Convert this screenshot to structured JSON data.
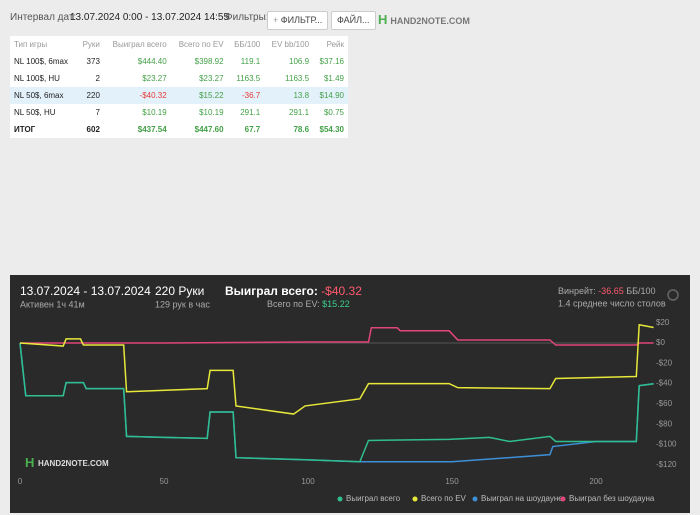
{
  "toolbar": {
    "date_label": "Интервал дат:",
    "date_range": "13.07.2024 0:00 - 13.07.2024 14:55",
    "filters_label": "Фильтры:",
    "filter_button": "ФИЛЬТР...",
    "file_button": "ФАЙЛ...",
    "logo": "HAND2NOTE.COM"
  },
  "table": {
    "columns": [
      "Тип игры",
      "Руки",
      "Выиграл всего",
      "Всего по EV",
      "ББ/100",
      "EV bb/100",
      "Рейк"
    ],
    "rows": [
      [
        "NL 100$, 6max",
        "373",
        "$444.40",
        "$398.92",
        "119.1",
        "106.9",
        "$37.16"
      ],
      [
        "NL 100$, HU",
        "2",
        "$23.27",
        "$23.27",
        "1163.5",
        "1163.5",
        "$1.49"
      ],
      [
        "NL 50$, 6max",
        "220",
        "-$40.32",
        "$15.22",
        "-36.7",
        "13.8",
        "$14.90"
      ],
      [
        "NL 50$, HU",
        "7",
        "$10.19",
        "$10.19",
        "291.1",
        "291.1",
        "$0.75"
      ],
      [
        "ИТОГ",
        "602",
        "$437.54",
        "$447.60",
        "67.7",
        "78.6",
        "$54.30"
      ]
    ]
  },
  "summary": {
    "dates": "13.07.2024 - 13.07.2024",
    "active": "Активен 1ч 41м",
    "hands": "220 Руки",
    "rate": "129 рук в час",
    "won_label": "Выиграл всего:",
    "won": "-$40.32",
    "ev_label": "Всего по EV:",
    "ev": "$15.22",
    "winrate_label": "Винрейт:",
    "winrate": "-36.65",
    "winrate_unit": "ББ/100",
    "tables": "1.4 среднее число столов",
    "logo": "HAND2NOTE.COM"
  },
  "chart_data": {
    "type": "line",
    "xlim": [
      0,
      220
    ],
    "xticks": [
      0,
      50,
      100,
      150,
      200
    ],
    "ylim": [
      -126,
      26
    ],
    "yticks": [
      {
        "value": 20,
        "label": "$20"
      },
      {
        "value": 0,
        "label": "$0"
      },
      {
        "value": -20,
        "label": "-$20"
      },
      {
        "value": -40,
        "label": "-$40"
      },
      {
        "value": -60,
        "label": "-$60"
      },
      {
        "value": -80,
        "label": "-$80"
      },
      {
        "value": -100,
        "label": "-$100"
      },
      {
        "value": -120,
        "label": "-$120"
      }
    ],
    "series": [
      {
        "name": "Выиграл всего",
        "color": "#2fbf8f",
        "x": [
          0,
          2,
          15,
          16,
          22,
          23,
          36,
          37,
          50,
          65,
          66,
          74,
          75,
          99,
          118,
          121,
          149,
          163,
          170,
          184,
          186,
          214,
          215,
          220
        ],
        "values": [
          0,
          -52,
          -52,
          -39,
          -39,
          -45,
          -45,
          -92,
          -93,
          -94,
          -68,
          -68,
          -113,
          -115,
          -117,
          -96,
          -95,
          -93,
          -97,
          -92,
          -97,
          -97,
          -42,
          -40.32
        ]
      },
      {
        "name": "Всего по EV",
        "color": "#e8e83a",
        "x": [
          0,
          15,
          16,
          21,
          22,
          36,
          37,
          65,
          66,
          74,
          75,
          95,
          99,
          118,
          121,
          149,
          152,
          184,
          186,
          214,
          215,
          220
        ],
        "values": [
          0,
          -3,
          4,
          4,
          -2,
          -2,
          -48,
          -45,
          -27,
          -27,
          -62,
          -70,
          -62,
          -55,
          -40,
          -40,
          -44,
          -45,
          -35,
          -33,
          18,
          15.22
        ]
      },
      {
        "name": "Выиграл на шоудауне",
        "color": "#3d8fd6",
        "x": [
          0,
          2,
          15,
          16,
          22,
          23,
          36,
          37,
          50,
          65,
          66,
          74,
          75,
          99,
          118,
          150,
          184,
          185,
          200,
          214,
          215,
          220
        ],
        "values": [
          0,
          -52,
          -52,
          -39,
          -39,
          -45,
          -45,
          -92,
          -93,
          -94,
          -68,
          -68,
          -113,
          -115,
          -117,
          -117,
          -110,
          -102,
          -97,
          -97,
          -42,
          -40
        ]
      },
      {
        "name": "Выиграл без шоудауна",
        "color": "#e0457b",
        "x": [
          0,
          50,
          100,
          121,
          122,
          131,
          132,
          149,
          152,
          184,
          186,
          214,
          215,
          220
        ],
        "values": [
          0,
          0,
          1,
          1,
          15,
          15,
          12,
          12,
          3,
          3,
          -2,
          -2,
          0,
          0
        ]
      }
    ]
  }
}
